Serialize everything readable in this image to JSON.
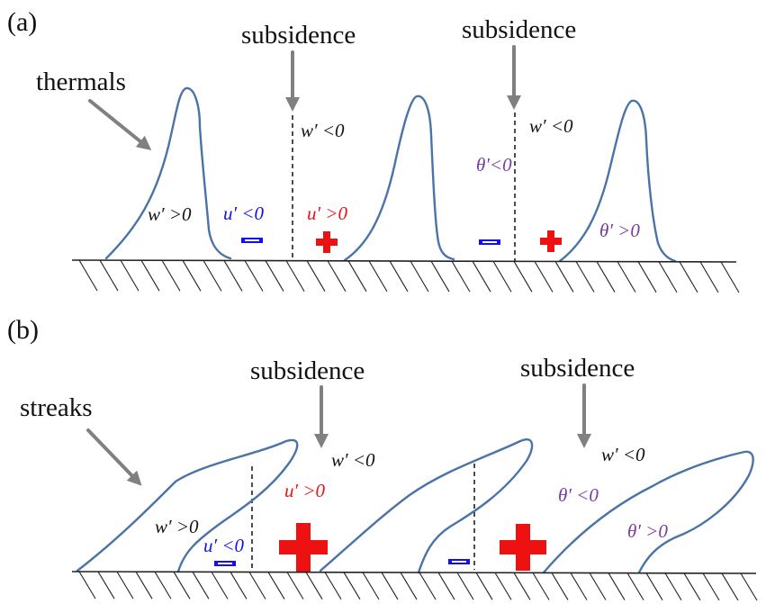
{
  "colors": {
    "curve": "#4a73a8",
    "arrow": "#808080",
    "positive": "#ee1111",
    "negative": "#1111ee",
    "theta": "#7a3aa0",
    "text": "#111111"
  },
  "panel_a": {
    "label": "(a)",
    "feature_label": "thermals",
    "subsidence_1": "subsidence",
    "subsidence_2": "subsidence",
    "w_neg_1": "w′ <0",
    "w_neg_2": "w′ <0",
    "w_pos": "w′ >0",
    "u_neg": "u′ <0",
    "u_pos": "u′ >0",
    "theta_neg": "θ′<0",
    "theta_pos": "θ′ >0"
  },
  "panel_b": {
    "label": "(b)",
    "feature_label": "streaks",
    "subsidence_1": "subsidence",
    "subsidence_2": "subsidence",
    "w_neg_1": "w′ <0",
    "w_neg_2": "w′ <0",
    "w_pos": "w′ >0",
    "u_neg": "u′ <0",
    "u_pos": "u′ >0",
    "theta_neg": "θ′ <0",
    "theta_pos": "θ′ >0"
  }
}
